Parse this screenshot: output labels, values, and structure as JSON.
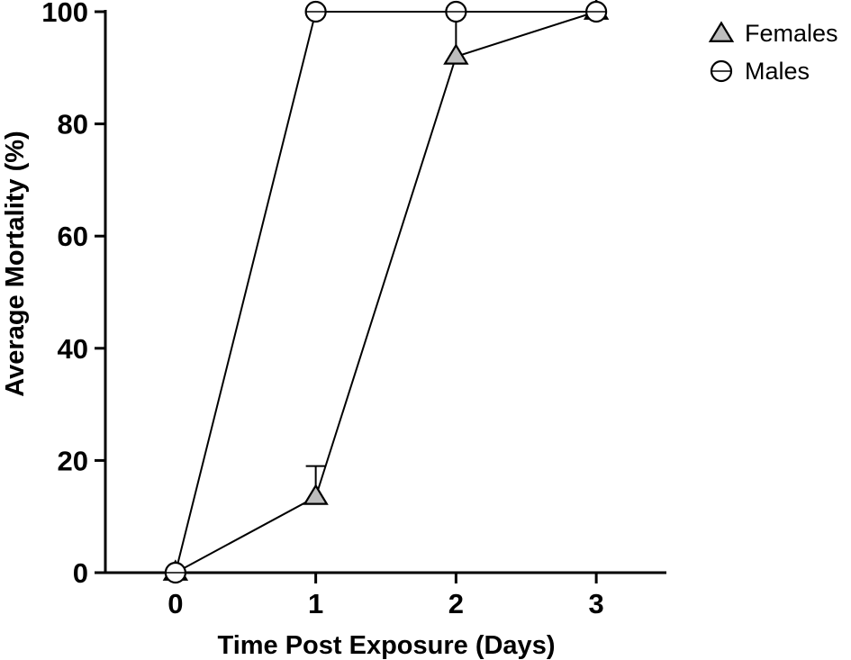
{
  "chart_data": {
    "type": "line",
    "xlabel": "Time Post Exposure (Days)",
    "ylabel": "Average Mortality (%)",
    "x": [
      0,
      1,
      2,
      3
    ],
    "x_ticks": [
      "0",
      "1",
      "2",
      "3"
    ],
    "y_ticks": [
      "0",
      "20",
      "40",
      "60",
      "80",
      "100"
    ],
    "xlim": [
      -0.5,
      3.5
    ],
    "ylim": [
      0,
      100
    ],
    "grid": false,
    "legend_position": "top-right",
    "series": [
      {
        "name": "Females",
        "marker": "triangle",
        "marker_fill": "#bdbdbd",
        "line_color": "#000000",
        "values": [
          0,
          13.5,
          92,
          100
        ],
        "error_upper": [
          0,
          5.5,
          7.5,
          0
        ]
      },
      {
        "name": "Males",
        "marker": "circle",
        "marker_fill": "#ffffff",
        "line_color": "#000000",
        "values": [
          0,
          100,
          100,
          100
        ],
        "error_upper": [
          0,
          0,
          0,
          0
        ]
      }
    ]
  }
}
